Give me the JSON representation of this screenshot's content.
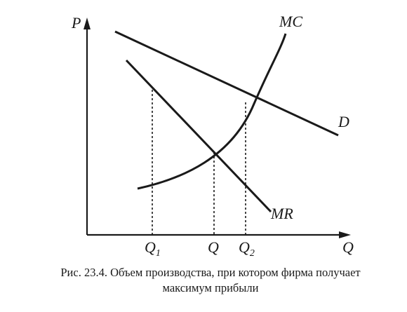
{
  "axes": {
    "y_label": "P",
    "x_label": "Q"
  },
  "curves": {
    "mc": "MC",
    "d": "D",
    "mr": "MR"
  },
  "ticks": {
    "q1": {
      "base": "Q",
      "sub": "1"
    },
    "q": "Q",
    "q2": {
      "base": "Q",
      "sub": "2"
    }
  },
  "caption": {
    "line1": "Рис. 23.4. Объем производства, при котором фирма получает",
    "line2": "максимум прибыли"
  },
  "colors": {
    "ink": "#1a1a1a",
    "background": "#ffffff"
  }
}
